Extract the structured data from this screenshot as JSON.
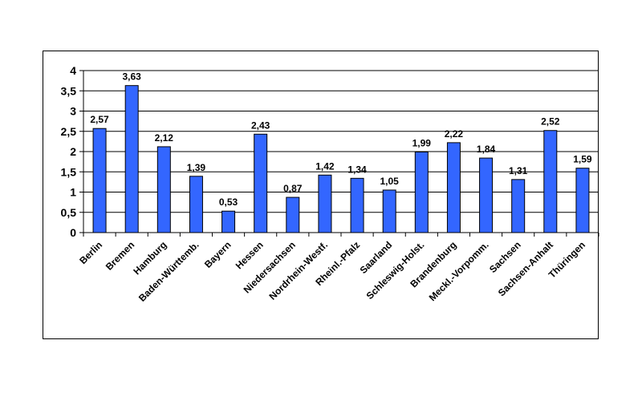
{
  "chart_data": {
    "type": "bar",
    "title": "",
    "xlabel": "",
    "ylabel": "",
    "ylim": [
      0,
      4
    ],
    "yticks": [
      "0",
      "0,5",
      "1",
      "1,5",
      "2",
      "2,5",
      "3",
      "3,5",
      "4"
    ],
    "ytick_values": [
      0,
      0.5,
      1,
      1.5,
      2,
      2.5,
      3,
      3.5,
      4
    ],
    "grid": true,
    "bar_color": "#3366FF",
    "categories": [
      "Berlin",
      "Bremen",
      "Hamburg",
      "Baden-Württemb.",
      "Bayern",
      "Hessen",
      "Niedersachsen",
      "Nordrhein-Westf.",
      "Rheinl.-Pfalz",
      "Saarland",
      "Schleswig-Holst.",
      "Brandenburg",
      "Meckl.-Vorpomm.",
      "Sachsen",
      "Sachsen-Anhalt",
      "Thüringen"
    ],
    "values": [
      2.57,
      3.63,
      2.12,
      1.39,
      0.53,
      2.43,
      0.87,
      1.42,
      1.34,
      1.05,
      1.99,
      2.22,
      1.84,
      1.31,
      2.52,
      1.59
    ],
    "value_labels": [
      "2,57",
      "3,63",
      "2,12",
      "1,39",
      "0,53",
      "2,43",
      "0,87",
      "1,42",
      "1,34",
      "1,05",
      "1,99",
      "2,22",
      "1,84",
      "1,31",
      "2,52",
      "1,59"
    ]
  }
}
